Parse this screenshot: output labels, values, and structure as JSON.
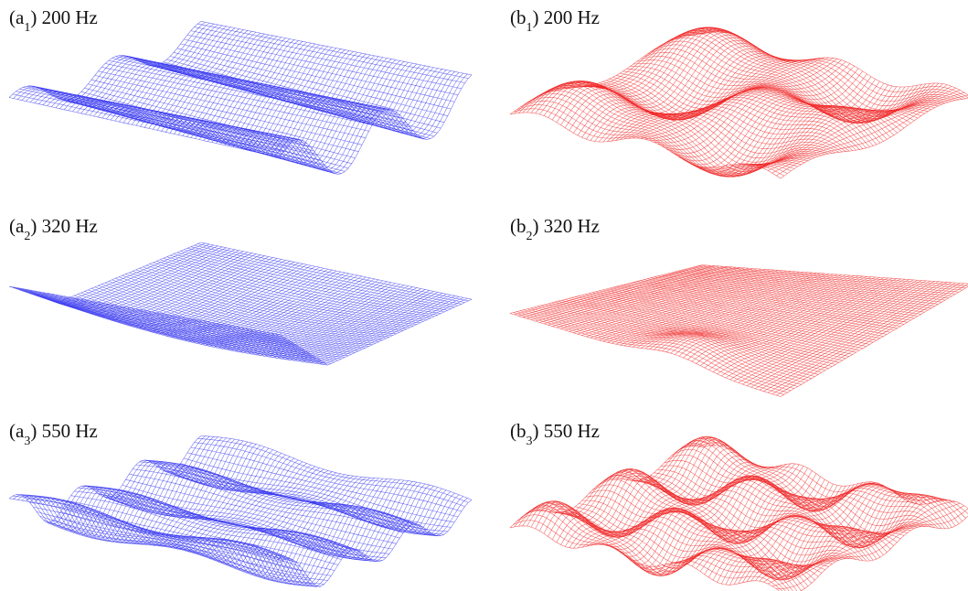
{
  "panels": [
    {
      "prefix": "(a",
      "sub": "1",
      "suffix": ") 200 Hz"
    },
    {
      "prefix": "(b",
      "sub": "1",
      "suffix": ") 200 Hz"
    },
    {
      "prefix": "(a",
      "sub": "2",
      "suffix": ") 320 Hz"
    },
    {
      "prefix": "(b",
      "sub": "2",
      "suffix": ") 320 Hz"
    },
    {
      "prefix": "(a",
      "sub": "3",
      "suffix": ") 550 Hz"
    },
    {
      "prefix": "(b",
      "sub": "3",
      "suffix": ") 550 Hz"
    }
  ]
}
